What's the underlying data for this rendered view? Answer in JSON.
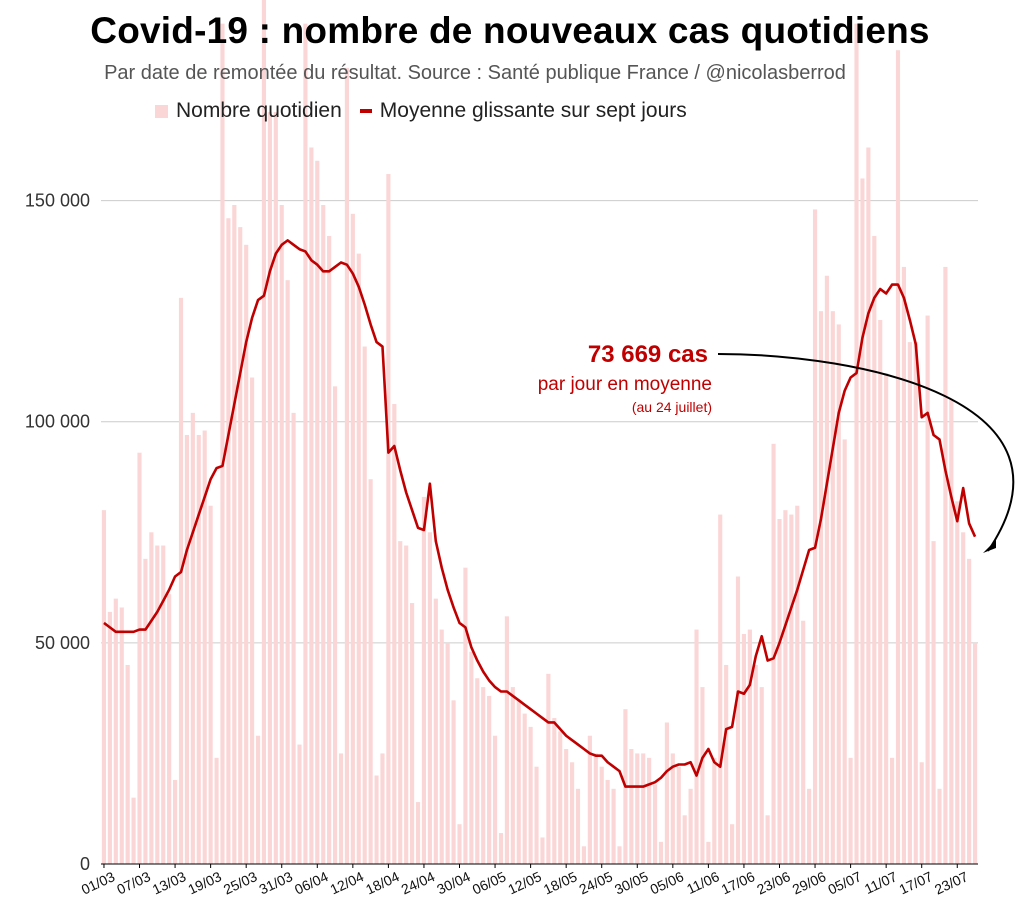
{
  "colors": {
    "bar": "#fbd6d6",
    "line": "#c00000",
    "grid": "#cccccc",
    "arrow": "#000000"
  },
  "chart_data": {
    "type": "bar",
    "title": "Covid-19 : nombre de nouveaux cas quotidiens",
    "subtitle": "Par date de remontée du résultat. Source : Santé publique France / @nicolasberrod",
    "legend": {
      "bars": "Nombre quotidien",
      "line": "Moyenne glissante sur sept jours",
      "placement": "top"
    },
    "ylim": [
      0,
      175000
    ],
    "yticks": [
      0,
      50000,
      100000,
      150000
    ],
    "ytick_labels": [
      "0",
      "50 000",
      "100 000",
      "150 000"
    ],
    "xtick_labels": [
      "01/03",
      "07/03",
      "13/03",
      "19/03",
      "25/03",
      "31/03",
      "06/04",
      "12/04",
      "18/04",
      "24/04",
      "30/04",
      "06/05",
      "12/05",
      "18/05",
      "24/05",
      "30/05",
      "05/06",
      "11/06",
      "17/06",
      "23/06",
      "29/06",
      "05/07",
      "11/07",
      "17/07",
      "23/07"
    ],
    "series": [
      {
        "name": "Nombre quotidien",
        "kind": "bar",
        "values": [
          80000,
          57000,
          60000,
          58000,
          45000,
          15000,
          93000,
          69000,
          75000,
          72000,
          72000,
          61000,
          19000,
          128000,
          97000,
          102000,
          97000,
          98000,
          81000,
          24000,
          190000,
          146000,
          149000,
          144000,
          140000,
          110000,
          29000,
          200000,
          170000,
          170000,
          149000,
          132000,
          102000,
          27000,
          190000,
          162000,
          159000,
          149000,
          142000,
          108000,
          25000,
          180000,
          147000,
          138000,
          117000,
          87000,
          20000,
          25000,
          156000,
          104000,
          73000,
          72000,
          59000,
          14000,
          83000,
          75000,
          60000,
          53000,
          50000,
          37000,
          9000,
          67000,
          48000,
          42000,
          40000,
          38000,
          29000,
          7000,
          56000,
          40000,
          37000,
          34000,
          31000,
          22000,
          6000,
          43000,
          33000,
          30000,
          26000,
          23000,
          17000,
          4000,
          29000,
          25000,
          22000,
          19000,
          17000,
          4000,
          35000,
          26000,
          25000,
          25000,
          24000,
          18000,
          5000,
          32000,
          25000,
          22000,
          11000,
          17000,
          53000,
          40000,
          5000,
          24000,
          79000,
          45000,
          9000,
          65000,
          52000,
          53000,
          45000,
          40000,
          11000,
          95000,
          78000,
          80000,
          79000,
          81000,
          55000,
          17000,
          148000,
          125000,
          133000,
          125000,
          122000,
          96000,
          24000,
          190000,
          155000,
          162000,
          142000,
          123000,
          111000,
          24000,
          184000,
          135000,
          118000,
          118000,
          23000,
          124000,
          73000,
          17000,
          135000,
          105000,
          82000,
          75000,
          69000,
          50000
        ]
      },
      {
        "name": "Moyenne glissante sur sept jours",
        "kind": "line",
        "values": [
          54500,
          53500,
          52500,
          52500,
          52500,
          52500,
          53000,
          53000,
          55000,
          57000,
          59500,
          62000,
          65000,
          66000,
          71000,
          75000,
          79000,
          83000,
          87000,
          89500,
          90000,
          97000,
          104000,
          111000,
          118000,
          123500,
          127500,
          128500,
          134000,
          138000,
          140000,
          141000,
          140000,
          139000,
          138500,
          136500,
          135500,
          134000,
          134000,
          135000,
          136000,
          135500,
          133500,
          130500,
          126500,
          122000,
          118000,
          117000,
          93000,
          94500,
          89000,
          84000,
          80000,
          76000,
          75500,
          86000,
          73000,
          67000,
          62000,
          58000,
          54500,
          53500,
          49000,
          46000,
          43500,
          41500,
          40000,
          39000,
          39000,
          38000,
          37000,
          36000,
          35000,
          34000,
          33000,
          32000,
          32000,
          30500,
          29000,
          28000,
          27000,
          26000,
          25000,
          24500,
          24500,
          23000,
          22000,
          21000,
          17500,
          17500,
          17500,
          17500,
          18000,
          18500,
          19500,
          21000,
          22000,
          22500,
          22500,
          23000,
          20000,
          24000,
          26000,
          23000,
          22000,
          30500,
          31000,
          39000,
          38500,
          40500,
          47000,
          51500,
          46000,
          46500,
          50000,
          54000,
          58000,
          62000,
          66500,
          71000,
          71500,
          78000,
          86000,
          94000,
          102000,
          107000,
          110000,
          111000,
          119000,
          124500,
          128000,
          130000,
          129000,
          131000,
          131000,
          128000,
          123000,
          117500,
          101000,
          102000,
          97000,
          96000,
          89000,
          83000,
          77500,
          85000,
          77000,
          74000
        ]
      }
    ],
    "annotation": {
      "value_text": "73 669 cas",
      "line2": "par jour en moyenne",
      "line3": "(au 24 juillet)"
    }
  }
}
